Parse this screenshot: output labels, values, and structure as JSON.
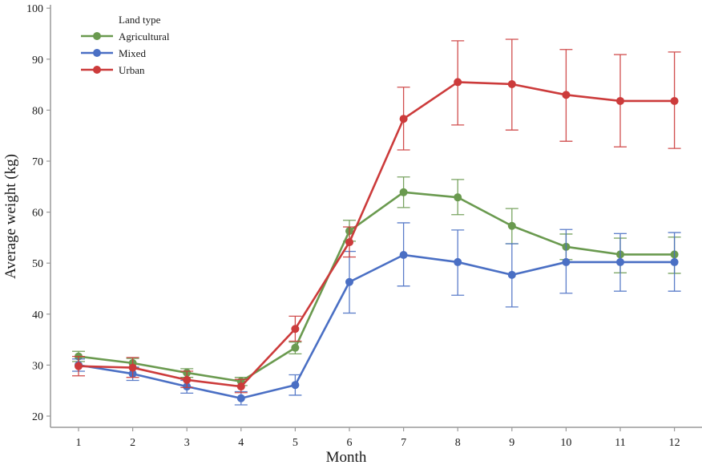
{
  "chart_data": {
    "type": "line",
    "title": "",
    "xlabel": "Month",
    "ylabel": "Average weight (kg)",
    "x": [
      1,
      2,
      3,
      4,
      5,
      6,
      7,
      8,
      9,
      10,
      11,
      12
    ],
    "x_ticks": [
      "1",
      "2",
      "3",
      "4",
      "5",
      "6",
      "7",
      "8",
      "9",
      "10",
      "11",
      "12"
    ],
    "ylim": [
      20,
      100
    ],
    "y_ticks": [
      20,
      30,
      40,
      50,
      60,
      70,
      80,
      90,
      100
    ],
    "grid": false,
    "legend": {
      "title": "Land type",
      "placement": "top-left"
    },
    "series": [
      {
        "name": "Agricultural",
        "color": "#6a9a4f",
        "values": [
          31.7,
          30.4,
          28.5,
          26.8,
          33.4,
          56.3,
          63.9,
          62.9,
          57.3,
          53.2,
          51.7,
          51.7
        ],
        "err_low": [
          30.7,
          29.5,
          27.6,
          26.0,
          32.2,
          54.3,
          60.9,
          59.5,
          53.8,
          50.7,
          48.1,
          48.0
        ],
        "err_high": [
          32.7,
          31.3,
          29.3,
          27.6,
          34.5,
          58.4,
          66.9,
          66.4,
          60.7,
          55.7,
          54.9,
          55.1
        ]
      },
      {
        "name": "Mixed",
        "color": "#4a6fc4",
        "values": [
          30.0,
          28.3,
          25.8,
          23.5,
          26.1,
          46.3,
          51.6,
          50.2,
          47.7,
          50.2,
          50.2,
          50.2
        ],
        "err_low": [
          28.8,
          27.0,
          24.5,
          22.2,
          24.1,
          40.2,
          45.5,
          43.7,
          41.4,
          44.1,
          44.5,
          44.5
        ],
        "err_high": [
          31.2,
          29.6,
          27.0,
          24.8,
          28.1,
          52.3,
          57.9,
          56.5,
          53.8,
          56.6,
          55.8,
          56.0
        ]
      },
      {
        "name": "Urban",
        "color": "#cc3b3b",
        "values": [
          29.8,
          29.5,
          27.1,
          25.8,
          37.1,
          54.1,
          78.3,
          85.5,
          85.1,
          83.0,
          81.8,
          81.8
        ],
        "err_low": [
          27.9,
          27.6,
          25.6,
          24.6,
          34.7,
          51.2,
          72.2,
          77.1,
          76.1,
          73.9,
          72.8,
          72.5
        ],
        "err_high": [
          31.7,
          31.5,
          28.8,
          27.2,
          39.6,
          57.1,
          84.5,
          93.6,
          93.9,
          91.9,
          90.9,
          91.4
        ]
      }
    ]
  }
}
